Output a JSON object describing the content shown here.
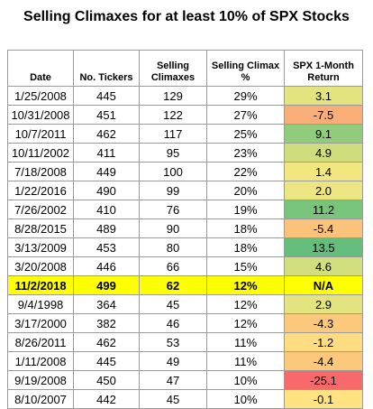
{
  "title": "Selling Climaxes for at least 10% of SPX Stocks",
  "headers": [
    {
      "line1": "",
      "line2": "Date"
    },
    {
      "line1": "",
      "line2": "No. Tickers"
    },
    {
      "line1": "Selling",
      "line2": "Climaxes"
    },
    {
      "line1": "Selling Climax",
      "line2": "%"
    },
    {
      "line1": "SPX 1-Month",
      "line2": "Return"
    }
  ],
  "rows": [
    {
      "date": "1/25/2008",
      "tickers": "445",
      "climaxes": "129",
      "pct": "29%",
      "ret": "3.1",
      "color": "#e3e37f"
    },
    {
      "date": "10/31/2008",
      "tickers": "451",
      "climaxes": "122",
      "pct": "27%",
      "ret": "-7.5",
      "color": "#f9ae77"
    },
    {
      "date": "10/7/2011",
      "tickers": "462",
      "climaxes": "117",
      "pct": "25%",
      "ret": "9.1",
      "color": "#90cc7b"
    },
    {
      "date": "10/11/2002",
      "tickers": "411",
      "climaxes": "95",
      "pct": "23%",
      "ret": "4.9",
      "color": "#cfdd7d"
    },
    {
      "date": "7/18/2008",
      "tickers": "449",
      "climaxes": "100",
      "pct": "22%",
      "ret": "1.4",
      "color": "#f2e681"
    },
    {
      "date": "1/22/2016",
      "tickers": "490",
      "climaxes": "99",
      "pct": "20%",
      "ret": "2.0",
      "color": "#ece582"
    },
    {
      "date": "7/26/2002",
      "tickers": "410",
      "climaxes": "76",
      "pct": "19%",
      "ret": "11.2",
      "color": "#78c47a"
    },
    {
      "date": "8/28/2015",
      "tickers": "489",
      "climaxes": "90",
      "pct": "18%",
      "ret": "-5.4",
      "color": "#fbc27b"
    },
    {
      "date": "3/13/2009",
      "tickers": "453",
      "climaxes": "80",
      "pct": "18%",
      "ret": "13.5",
      "color": "#63be7b"
    },
    {
      "date": "3/20/2008",
      "tickers": "446",
      "climaxes": "66",
      "pct": "15%",
      "ret": "4.6",
      "color": "#d3de7e"
    },
    {
      "date": "11/2/2018",
      "tickers": "499",
      "climaxes": "62",
      "pct": "12%",
      "ret": "N/A",
      "color": "#ffff00",
      "highlight": true
    },
    {
      "date": "9/4/1998",
      "tickers": "364",
      "climaxes": "45",
      "pct": "12%",
      "ret": "2.9",
      "color": "#e3e37f"
    },
    {
      "date": "3/17/2000",
      "tickers": "382",
      "climaxes": "46",
      "pct": "12%",
      "ret": "-4.3",
      "color": "#fcc97c"
    },
    {
      "date": "8/26/2011",
      "tickers": "462",
      "climaxes": "53",
      "pct": "11%",
      "ret": "-1.2",
      "color": "#fedc81"
    },
    {
      "date": "1/11/2008",
      "tickers": "445",
      "climaxes": "49",
      "pct": "11%",
      "ret": "-4.4",
      "color": "#fcc97c"
    },
    {
      "date": "9/19/2008",
      "tickers": "450",
      "climaxes": "47",
      "pct": "10%",
      "ret": "-25.1",
      "color": "#f8696b"
    },
    {
      "date": "8/10/2007",
      "tickers": "442",
      "climaxes": "45",
      "pct": "10%",
      "ret": "-0.1",
      "color": "#ffe383"
    }
  ]
}
